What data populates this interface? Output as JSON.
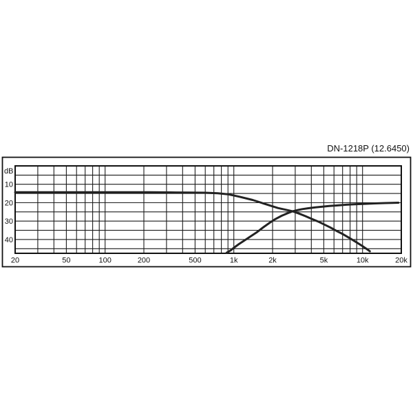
{
  "page": {
    "background": "#ffffff"
  },
  "chart_data": {
    "type": "line",
    "title": "DN-1218P (12.6450)",
    "legend": "none",
    "grid": "on",
    "x_axis": {
      "scale": "log",
      "unit": "Hz",
      "min": 20,
      "max": 20000,
      "ticks": [
        {
          "value": 20,
          "label": "20"
        },
        {
          "value": 50,
          "label": "50"
        },
        {
          "value": 100,
          "label": "100"
        },
        {
          "value": 200,
          "label": "200"
        },
        {
          "value": 500,
          "label": "500"
        },
        {
          "value": 1000,
          "label": "1k"
        },
        {
          "value": 2000,
          "label": "2k"
        },
        {
          "value": 5000,
          "label": "5k"
        },
        {
          "value": 10000,
          "label": "10k"
        },
        {
          "value": 20000,
          "label": "20k"
        }
      ],
      "gridlines": [
        20,
        30,
        40,
        50,
        60,
        70,
        80,
        90,
        100,
        200,
        300,
        400,
        500,
        600,
        700,
        800,
        900,
        1000,
        2000,
        3000,
        4000,
        5000,
        6000,
        7000,
        8000,
        9000,
        10000,
        20000
      ]
    },
    "y_axis": {
      "label": "dB",
      "direction": "attenuation-downward",
      "top_value": 0,
      "bottom_value": 47.5,
      "gridline_step": 5,
      "gridlines": [
        5,
        10,
        15,
        20,
        25,
        30,
        35,
        40,
        45
      ],
      "ticks": [
        {
          "value": 10,
          "label": "10"
        },
        {
          "value": 20,
          "label": "20"
        },
        {
          "value": 30,
          "label": "30"
        },
        {
          "value": 40,
          "label": "40"
        }
      ]
    },
    "series": [
      {
        "name": "lowpass-curve",
        "points": [
          [
            20,
            14.3
          ],
          [
            60,
            14.3
          ],
          [
            100,
            14.3
          ],
          [
            150,
            14.3
          ],
          [
            220,
            14.3
          ],
          [
            320,
            14.4
          ],
          [
            450,
            14.5
          ],
          [
            600,
            14.6
          ],
          [
            750,
            14.9
          ],
          [
            900,
            15.4
          ],
          [
            1100,
            16.7
          ],
          [
            1400,
            18.5
          ],
          [
            1800,
            21.0
          ],
          [
            2200,
            22.9
          ],
          [
            2600,
            24.0
          ],
          [
            2860,
            24.7
          ],
          [
            3200,
            25.9
          ],
          [
            3600,
            27.3
          ],
          [
            4000,
            28.7
          ],
          [
            4500,
            30.2
          ],
          [
            5000,
            31.7
          ],
          [
            5600,
            33.4
          ],
          [
            6300,
            35.4
          ],
          [
            7000,
            37.0
          ],
          [
            8000,
            39.4
          ],
          [
            9000,
            41.6
          ],
          [
            10000,
            43.6
          ],
          [
            11000,
            45.6
          ],
          [
            11400,
            46.4
          ]
        ]
      },
      {
        "name": "highpass-curve",
        "points": [
          [
            880,
            47.2
          ],
          [
            950,
            45.8
          ],
          [
            1000,
            44.5
          ],
          [
            1100,
            42.4
          ],
          [
            1200,
            40.7
          ],
          [
            1350,
            38.3
          ],
          [
            1500,
            36.2
          ],
          [
            1700,
            33.3
          ],
          [
            1900,
            30.9
          ],
          [
            2100,
            28.9
          ],
          [
            2350,
            27.1
          ],
          [
            2600,
            25.8
          ],
          [
            2860,
            24.7
          ],
          [
            3100,
            24.1
          ],
          [
            3400,
            23.5
          ],
          [
            3800,
            23.0
          ],
          [
            4300,
            22.5
          ],
          [
            4800,
            22.2
          ],
          [
            5500,
            21.8
          ],
          [
            6300,
            21.5
          ],
          [
            7500,
            21.1
          ],
          [
            9000,
            20.8
          ],
          [
            10500,
            20.6
          ],
          [
            12500,
            20.4
          ],
          [
            15000,
            20.2
          ],
          [
            17000,
            20.1
          ],
          [
            19000,
            20.0
          ]
        ]
      }
    ],
    "annotations": {
      "crossover_frequency_hz": 2860,
      "crossover_level_db": 24.7
    },
    "styles": {
      "curve_color": "#222222",
      "grid_color": "#1a1a1a",
      "frame_color": "#111111",
      "text_color": "#111111",
      "background": "#ffffff"
    }
  }
}
